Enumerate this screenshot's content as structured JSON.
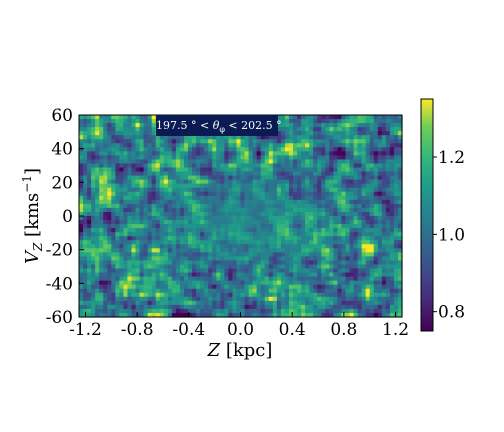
{
  "chart_data": {
    "type": "heatmap",
    "title": "",
    "xlabel": "Z [kpc]",
    "ylabel": "V_Z [kms^-1]",
    "xlim": [
      -1.25,
      1.25
    ],
    "ylim": [
      -60,
      60
    ],
    "x_ticks": [
      "-1.2",
      "-0.8",
      "-0.4",
      "0.0",
      "0.4",
      "0.8",
      "1.2"
    ],
    "y_ticks": [
      "60",
      "40",
      "20",
      "0",
      "-20",
      "-40",
      "-60"
    ],
    "annotation": "197.5 ° < θ_φ < 202.5 °",
    "colorbar": {
      "colormap": "viridis",
      "range": [
        0.75,
        1.35
      ],
      "ticks": [
        "1.2",
        "1.0",
        "0.8"
      ]
    },
    "grid": false,
    "field_description_values": {
      "center_value": 1.05,
      "noise_amplitude": 0.45
    }
  },
  "colors": {
    "viridis_low": "#440154",
    "viridis_mid": "#21918c",
    "viridis_high": "#fde725"
  }
}
